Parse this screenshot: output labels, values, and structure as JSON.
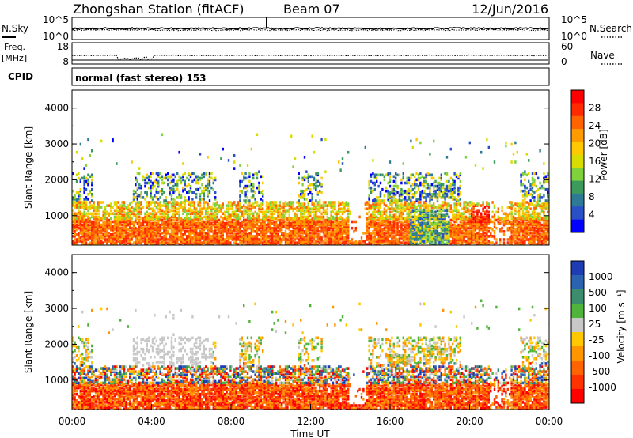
{
  "header": {
    "station": "Zhongshan Station (fitACF)",
    "beam": "Beam 07",
    "date": "12/Jun/2016"
  },
  "panels": {
    "nsky": {
      "label": "N.Sky",
      "left_ticks": [
        "10^5",
        "10^0"
      ],
      "right_ticks": [
        "10^5",
        "10^0"
      ],
      "right_label": "N.Search"
    },
    "freq": {
      "label_top": "Freq.",
      "label_unit": "[MHz]",
      "left_ticks": [
        "18",
        "8"
      ],
      "right_ticks": [
        "60",
        "0"
      ],
      "right_label": "Nave"
    },
    "cpid": {
      "label": "CPID",
      "mode_text": "normal (fast stereo) 153"
    }
  },
  "chart_data": [
    {
      "type": "heatmap",
      "name": "power",
      "ylabel": "Slant Range [km]",
      "ylim": [
        180,
        4500
      ],
      "yticks": [
        "4000",
        "3000",
        "2000",
        "1000"
      ],
      "colorbar": {
        "label": "Power [dB]",
        "ticks": [
          "28",
          "24",
          "20",
          "16",
          "12",
          "8",
          "4"
        ],
        "colors": [
          "#ff0000",
          "#ff2a00",
          "#ff6400",
          "#ff9a00",
          "#ffc800",
          "#d8dc00",
          "#7fd23c",
          "#3c9a5a",
          "#2e7a96",
          "#2a50c8",
          "#0000ff"
        ]
      }
    },
    {
      "type": "heatmap",
      "name": "velocity",
      "xlabel": "Time UT",
      "ylabel": "Slant Range [km]",
      "ylim": [
        180,
        4500
      ],
      "xlim": [
        "00:00",
        "24:00"
      ],
      "yticks": [
        "4000",
        "3000",
        "2000",
        "1000"
      ],
      "xticks": [
        "00:00",
        "04:00",
        "08:00",
        "12:00",
        "16:00",
        "20:00",
        "00:00"
      ],
      "colorbar": {
        "label": "Velocity [m s⁻¹]",
        "ticks": [
          "1000",
          "500",
          "100",
          "25",
          "-25",
          "-100",
          "-500",
          "-1000"
        ],
        "colors": [
          "#1e3cb4",
          "#2a64b0",
          "#3c8c6e",
          "#50b43c",
          "#c8c8c8",
          "#ffc800",
          "#ff9600",
          "#ff6400",
          "#ff3200",
          "#ff0000"
        ]
      }
    }
  ]
}
